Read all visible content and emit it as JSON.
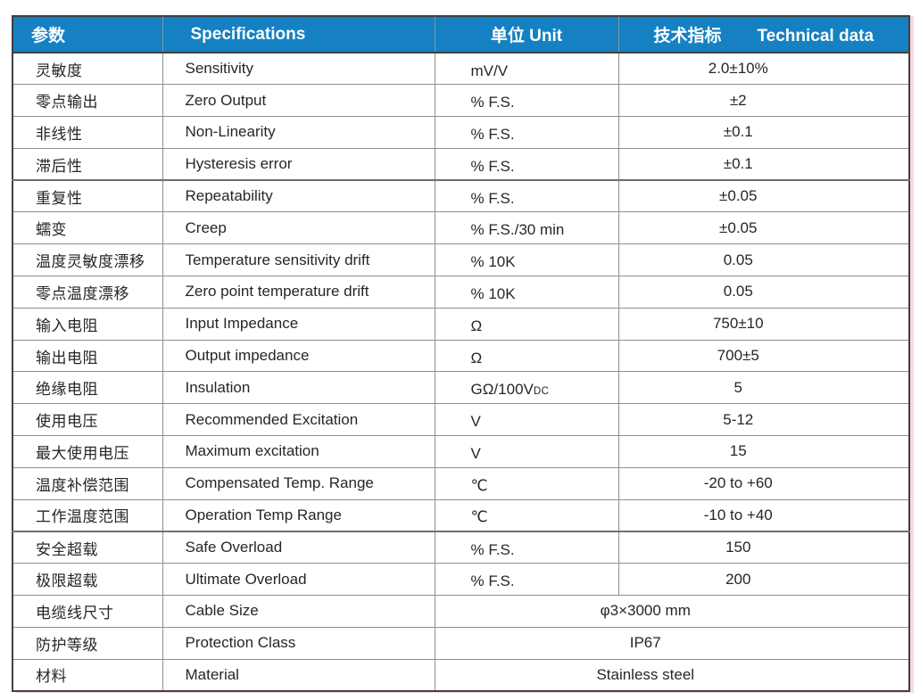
{
  "colors": {
    "header_bg": "#1581c3",
    "header_text": "#ffffff",
    "border_dark": "#404040",
    "border_light": "#8f8f8f",
    "body_text": "#262626"
  },
  "table": {
    "headers": {
      "param_zh": "参数",
      "spec_en": "Specifications",
      "unit": "单位 Unit",
      "tech_zh": "技术指标",
      "tech_en": "Technical data"
    },
    "rows": [
      {
        "param": "灵敏度",
        "spec": "Sensitivity",
        "unit": "mV/V",
        "value": "2.0±10%"
      },
      {
        "param": "零点输出",
        "spec": "Zero Output",
        "unit": "% F.S.",
        "value": "±2"
      },
      {
        "param": "非线性",
        "spec": "Non-Linearity",
        "unit": "% F.S.",
        "value": "±0.1"
      },
      {
        "param": "滞后性",
        "spec": "Hysteresis error",
        "unit": "% F.S.",
        "value": "±0.1",
        "thick_after": true
      },
      {
        "param": "重复性",
        "spec": "Repeatability",
        "unit": "% F.S.",
        "value": "±0.05"
      },
      {
        "param": "蠕变",
        "spec": "Creep",
        "unit": "% F.S./30 min",
        "value": "±0.05"
      },
      {
        "param": "温度灵敏度漂移",
        "spec": "Temperature sensitivity drift",
        "unit": "% 10K",
        "value": "0.05"
      },
      {
        "param": "零点温度漂移",
        "spec": "Zero point temperature drift",
        "unit": "% 10K",
        "value": "0.05"
      },
      {
        "param": "输入电阻",
        "spec": "Input Impedance",
        "unit": "Ω",
        "value": "750±10"
      },
      {
        "param": "输出电阻",
        "spec": "Output impedance",
        "unit": "Ω",
        "value": "700±5"
      },
      {
        "param": "绝缘电阻",
        "spec": "Insulation",
        "unit": "GΩ/100V",
        "unit_small": "DC",
        "value": "5"
      },
      {
        "param": "使用电压",
        "spec": "Recommended Excitation",
        "unit": "V",
        "value": "5-12"
      },
      {
        "param": "最大使用电压",
        "spec": "Maximum excitation",
        "unit": "V",
        "value": "15"
      },
      {
        "param": "温度补偿范围",
        "spec": "Compensated Temp. Range",
        "unit": "℃",
        "value": "-20 to +60"
      },
      {
        "param": "工作温度范围",
        "spec": "Operation Temp Range",
        "unit": "℃",
        "value": "-10 to +40",
        "thick_after": true
      },
      {
        "param": "安全超载",
        "spec": "Safe Overload",
        "unit": "% F.S.",
        "value": "150"
      },
      {
        "param": "极限超载",
        "spec": "Ultimate Overload",
        "unit": "% F.S.",
        "value": "200"
      },
      {
        "param": "电缆线尺寸",
        "spec": "Cable Size",
        "merged": "φ3×3000 mm"
      },
      {
        "param": "防护等级",
        "spec": "Protection Class",
        "merged": "IP67"
      },
      {
        "param": "材料",
        "spec": "Material",
        "merged": "Stainless steel"
      }
    ]
  }
}
